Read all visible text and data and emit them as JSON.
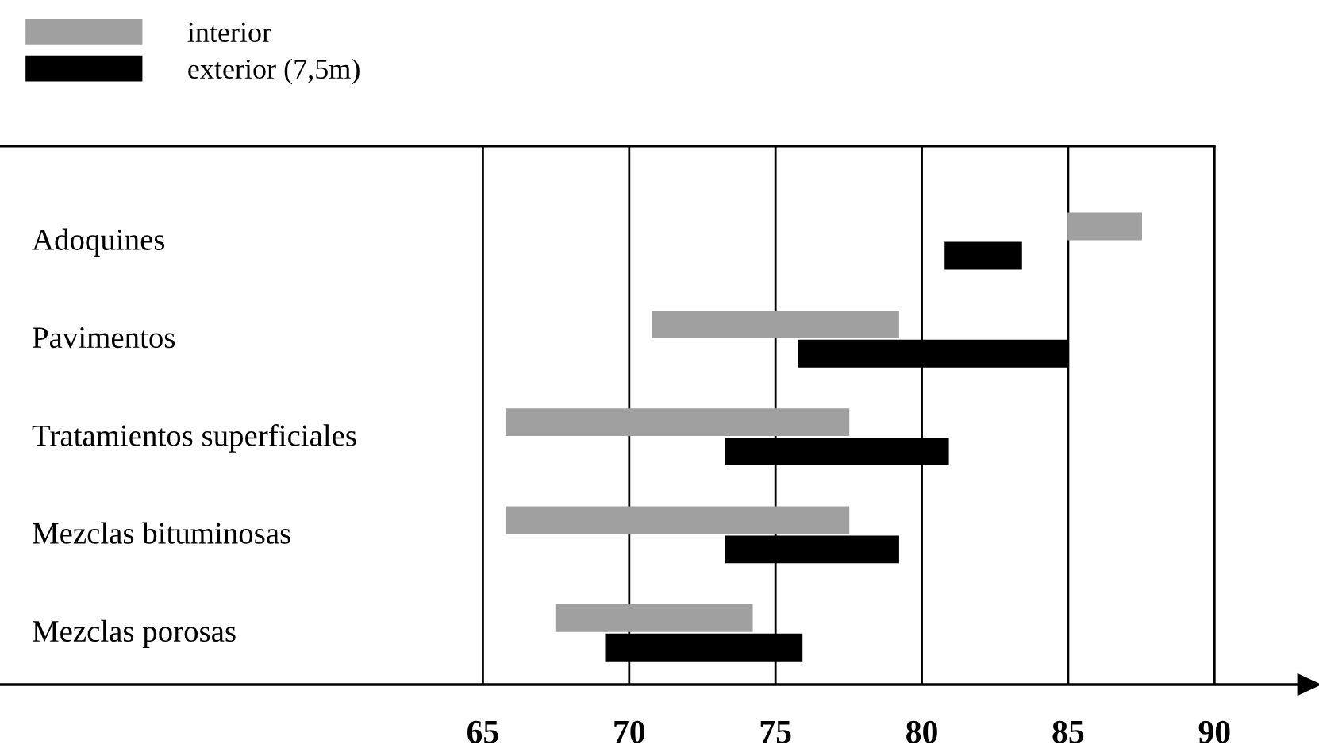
{
  "chart_data": {
    "type": "bar",
    "orientation": "horizontal",
    "categories": [
      "Adoquines",
      "Pavimentos",
      "Tratamientos superficiales",
      "Mezclas bituminosas",
      "Mezclas porosas"
    ],
    "series": [
      {
        "name": "interior",
        "color": "#a0a0a0",
        "base": [
          85,
          70.8,
          65.8,
          65.8,
          67.5
        ],
        "values": [
          2.5,
          8.4,
          11.7,
          11.7,
          6.7
        ]
      },
      {
        "name": "exterior (7,5m)",
        "color": "#000000",
        "base": [
          80.8,
          75.8,
          73.3,
          73.3,
          69.2
        ],
        "values": [
          2.6,
          9.2,
          7.6,
          5.9,
          6.7
        ]
      }
    ],
    "xlim": [
      48.5,
      93.3
    ],
    "xticks": [
      65,
      70,
      75,
      80,
      85,
      90
    ],
    "grid": "x",
    "legend": "top left"
  }
}
